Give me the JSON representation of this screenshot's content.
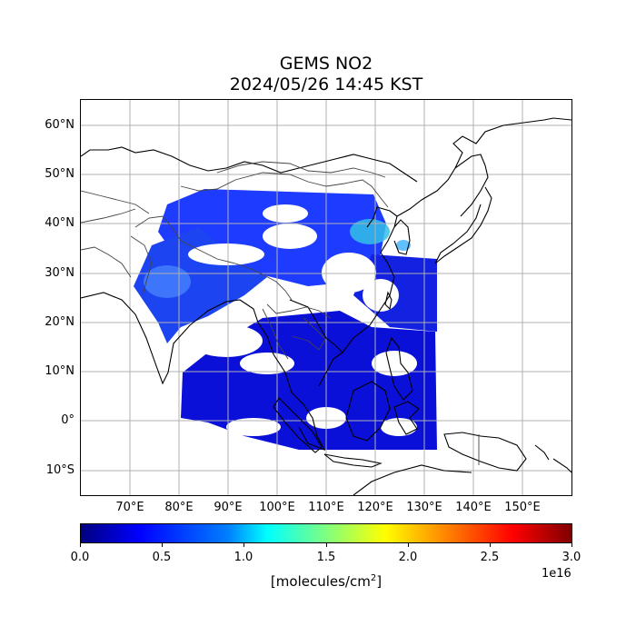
{
  "title_line1": "GEMS NO2",
  "title_line2": "2024/05/26 14:45 KST",
  "lat_ticks": [
    {
      "value": 60,
      "label": "60°N"
    },
    {
      "value": 50,
      "label": "50°N"
    },
    {
      "value": 40,
      "label": "40°N"
    },
    {
      "value": 30,
      "label": "30°N"
    },
    {
      "value": 20,
      "label": "20°N"
    },
    {
      "value": 10,
      "label": "10°N"
    },
    {
      "value": 0,
      "label": "0°"
    },
    {
      "value": -10,
      "label": "10°S"
    }
  ],
  "lon_ticks": [
    {
      "value": 70,
      "label": "70°E"
    },
    {
      "value": 80,
      "label": "80°E"
    },
    {
      "value": 90,
      "label": "90°E"
    },
    {
      "value": 100,
      "label": "100°E"
    },
    {
      "value": 110,
      "label": "110°E"
    },
    {
      "value": 120,
      "label": "120°E"
    },
    {
      "value": 130,
      "label": "130°E"
    },
    {
      "value": 140,
      "label": "140°E"
    },
    {
      "value": 150,
      "label": "150°E"
    }
  ],
  "map_extent": {
    "lon_min": 60,
    "lon_max": 160,
    "lat_min": -15,
    "lat_max": 65
  },
  "colorbar": {
    "colormap": "jet",
    "ticks": [
      "0.0",
      "0.5",
      "1.0",
      "1.5",
      "2.0",
      "2.5",
      "3.0"
    ],
    "tick_values": [
      0.0,
      0.5,
      1.0,
      1.5,
      2.0,
      2.5,
      3.0
    ],
    "range": [
      0.0,
      3.0
    ],
    "label_base": "[molecules/cm",
    "label_sup": "2",
    "label_end": "]",
    "exponent": "1e16"
  },
  "colors": {
    "no2_low": "#0000cd",
    "no2_mid": "#1e3cff",
    "no2_high": "#3ccfe0",
    "coastline": "#000000",
    "border": "#444444",
    "grid": "#b0b0b0"
  }
}
